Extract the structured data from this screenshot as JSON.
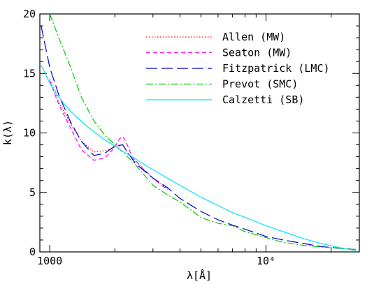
{
  "chart_data": {
    "type": "line",
    "title": "",
    "xlabel": "λ[Å]",
    "ylabel": "k(λ)",
    "xscale": "log",
    "xlim": [
      900,
      27000
    ],
    "ylim": [
      0,
      20
    ],
    "xticks": [
      {
        "value": 1000,
        "label": "1000"
      },
      {
        "value": 10000,
        "label": "10⁴"
      }
    ],
    "yticks": [
      {
        "value": 0,
        "label": "0"
      },
      {
        "value": 5,
        "label": "5"
      },
      {
        "value": 10,
        "label": "10"
      },
      {
        "value": 15,
        "label": "15"
      },
      {
        "value": 20,
        "label": "20"
      }
    ],
    "legend_position": "top-right",
    "series": [
      {
        "name": "Allen (MW)",
        "color": "#ff0000",
        "dash": "dotted",
        "x": [
          1000,
          1100,
          1250,
          1400,
          1600,
          1800,
          2000,
          2175,
          2300,
          2500,
          3000,
          3500
        ],
        "y": [
          14.5,
          12.6,
          10.8,
          9.3,
          8.4,
          8.5,
          8.8,
          9.0,
          8.3,
          7.6,
          6.2,
          5.3
        ]
      },
      {
        "name": "Seaton (MW)",
        "color": "#ff00ff",
        "dash": "dashed",
        "x": [
          1000,
          1100,
          1250,
          1400,
          1600,
          1800,
          2000,
          2100,
          2175,
          2250,
          2400,
          2700,
          3000,
          3500
        ],
        "y": [
          14.4,
          12.4,
          10.4,
          8.6,
          7.7,
          7.9,
          8.8,
          9.5,
          9.7,
          9.3,
          8.0,
          7.0,
          6.2,
          5.2
        ]
      },
      {
        "name": "Fitzpatrick (LMC)",
        "color": "#0000cc",
        "dash": "longdash",
        "x": [
          912,
          1000,
          1100,
          1250,
          1400,
          1600,
          1800,
          2000,
          2175,
          2300,
          2500,
          3000,
          3500,
          4000,
          5000,
          6000,
          7000,
          8000,
          10000,
          12000,
          15000,
          18000,
          22000,
          26000
        ],
        "y": [
          19,
          15.5,
          13.2,
          10.9,
          9.3,
          8.1,
          8.3,
          8.9,
          9.0,
          8.3,
          7.4,
          6.2,
          5.4,
          4.5,
          3.4,
          2.7,
          2.25,
          1.9,
          1.3,
          1.0,
          0.7,
          0.45,
          0.3,
          0.2
        ]
      },
      {
        "name": "Prevot (SMC)",
        "color": "#00cc00",
        "dash": "dashdot",
        "x": [
          1000,
          1100,
          1250,
          1400,
          1600,
          1800,
          2000,
          2200,
          2500,
          3000,
          3500,
          4000,
          5000,
          6000,
          7000,
          8000,
          10000,
          12000,
          15000,
          18000,
          22000,
          26000
        ],
        "y": [
          20.0,
          18.0,
          15.5,
          13.0,
          11.0,
          9.8,
          9.0,
          8.3,
          7.3,
          5.6,
          4.8,
          4.2,
          2.9,
          2.4,
          2.2,
          1.7,
          1.2,
          0.8,
          0.55,
          0.4,
          0.3,
          0.2
        ]
      },
      {
        "name": "Calzetti (SB)",
        "color": "#00e5ff",
        "dash": "solid",
        "x": [
          912,
          1000,
          1100,
          1250,
          1500,
          1800,
          2000,
          2200,
          2500,
          3000,
          3500,
          4000,
          5000,
          6000,
          7000,
          8000,
          10000,
          12000,
          15000,
          18000,
          22000,
          26000
        ],
        "y": [
          15.7,
          14.2,
          13.0,
          11.8,
          10.5,
          9.4,
          8.9,
          8.4,
          7.8,
          6.9,
          6.2,
          5.6,
          4.6,
          3.9,
          3.3,
          2.9,
          2.2,
          1.7,
          1.1,
          0.7,
          0.35,
          0.1
        ]
      }
    ]
  }
}
